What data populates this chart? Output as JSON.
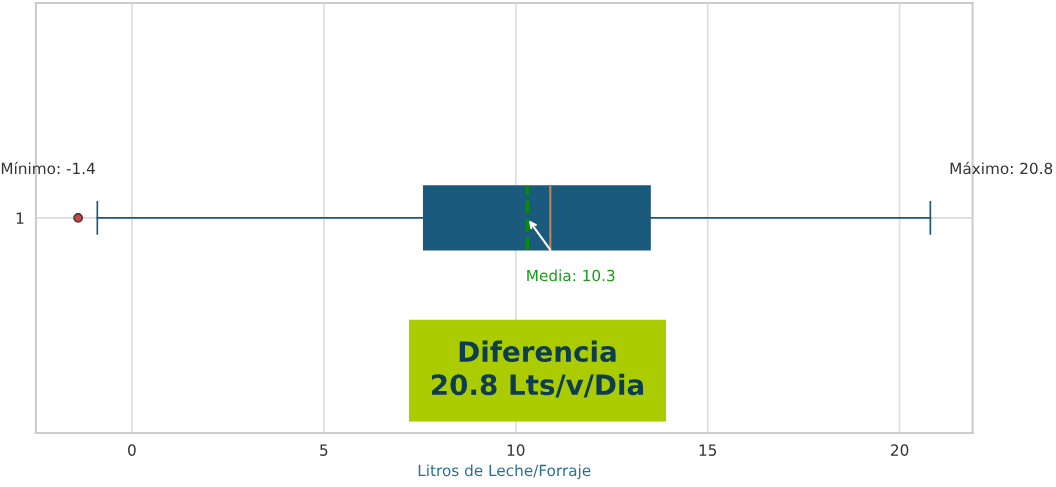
{
  "chart_data": {
    "type": "box",
    "orientation": "horizontal",
    "categories": [
      "1"
    ],
    "boxes": [
      {
        "low": -0.9,
        "q1": 7.6,
        "median": 10.9,
        "q3": 13.5,
        "high": 20.8,
        "mean": 10.3,
        "outliers": [
          -1.4
        ]
      }
    ],
    "color": "#1a5a7d",
    "xlabel": "Litros de Leche/Forraje",
    "xlim": [
      -2.5,
      21.9
    ],
    "xticks": [
      0,
      5,
      10,
      15,
      20
    ],
    "grid": true,
    "annotations": [
      "Mínimo: -1.4",
      "Máximo: 20.8",
      "Media: 10.3",
      "Diferencia\n20.8 Lts/v/Dia"
    ]
  }
}
